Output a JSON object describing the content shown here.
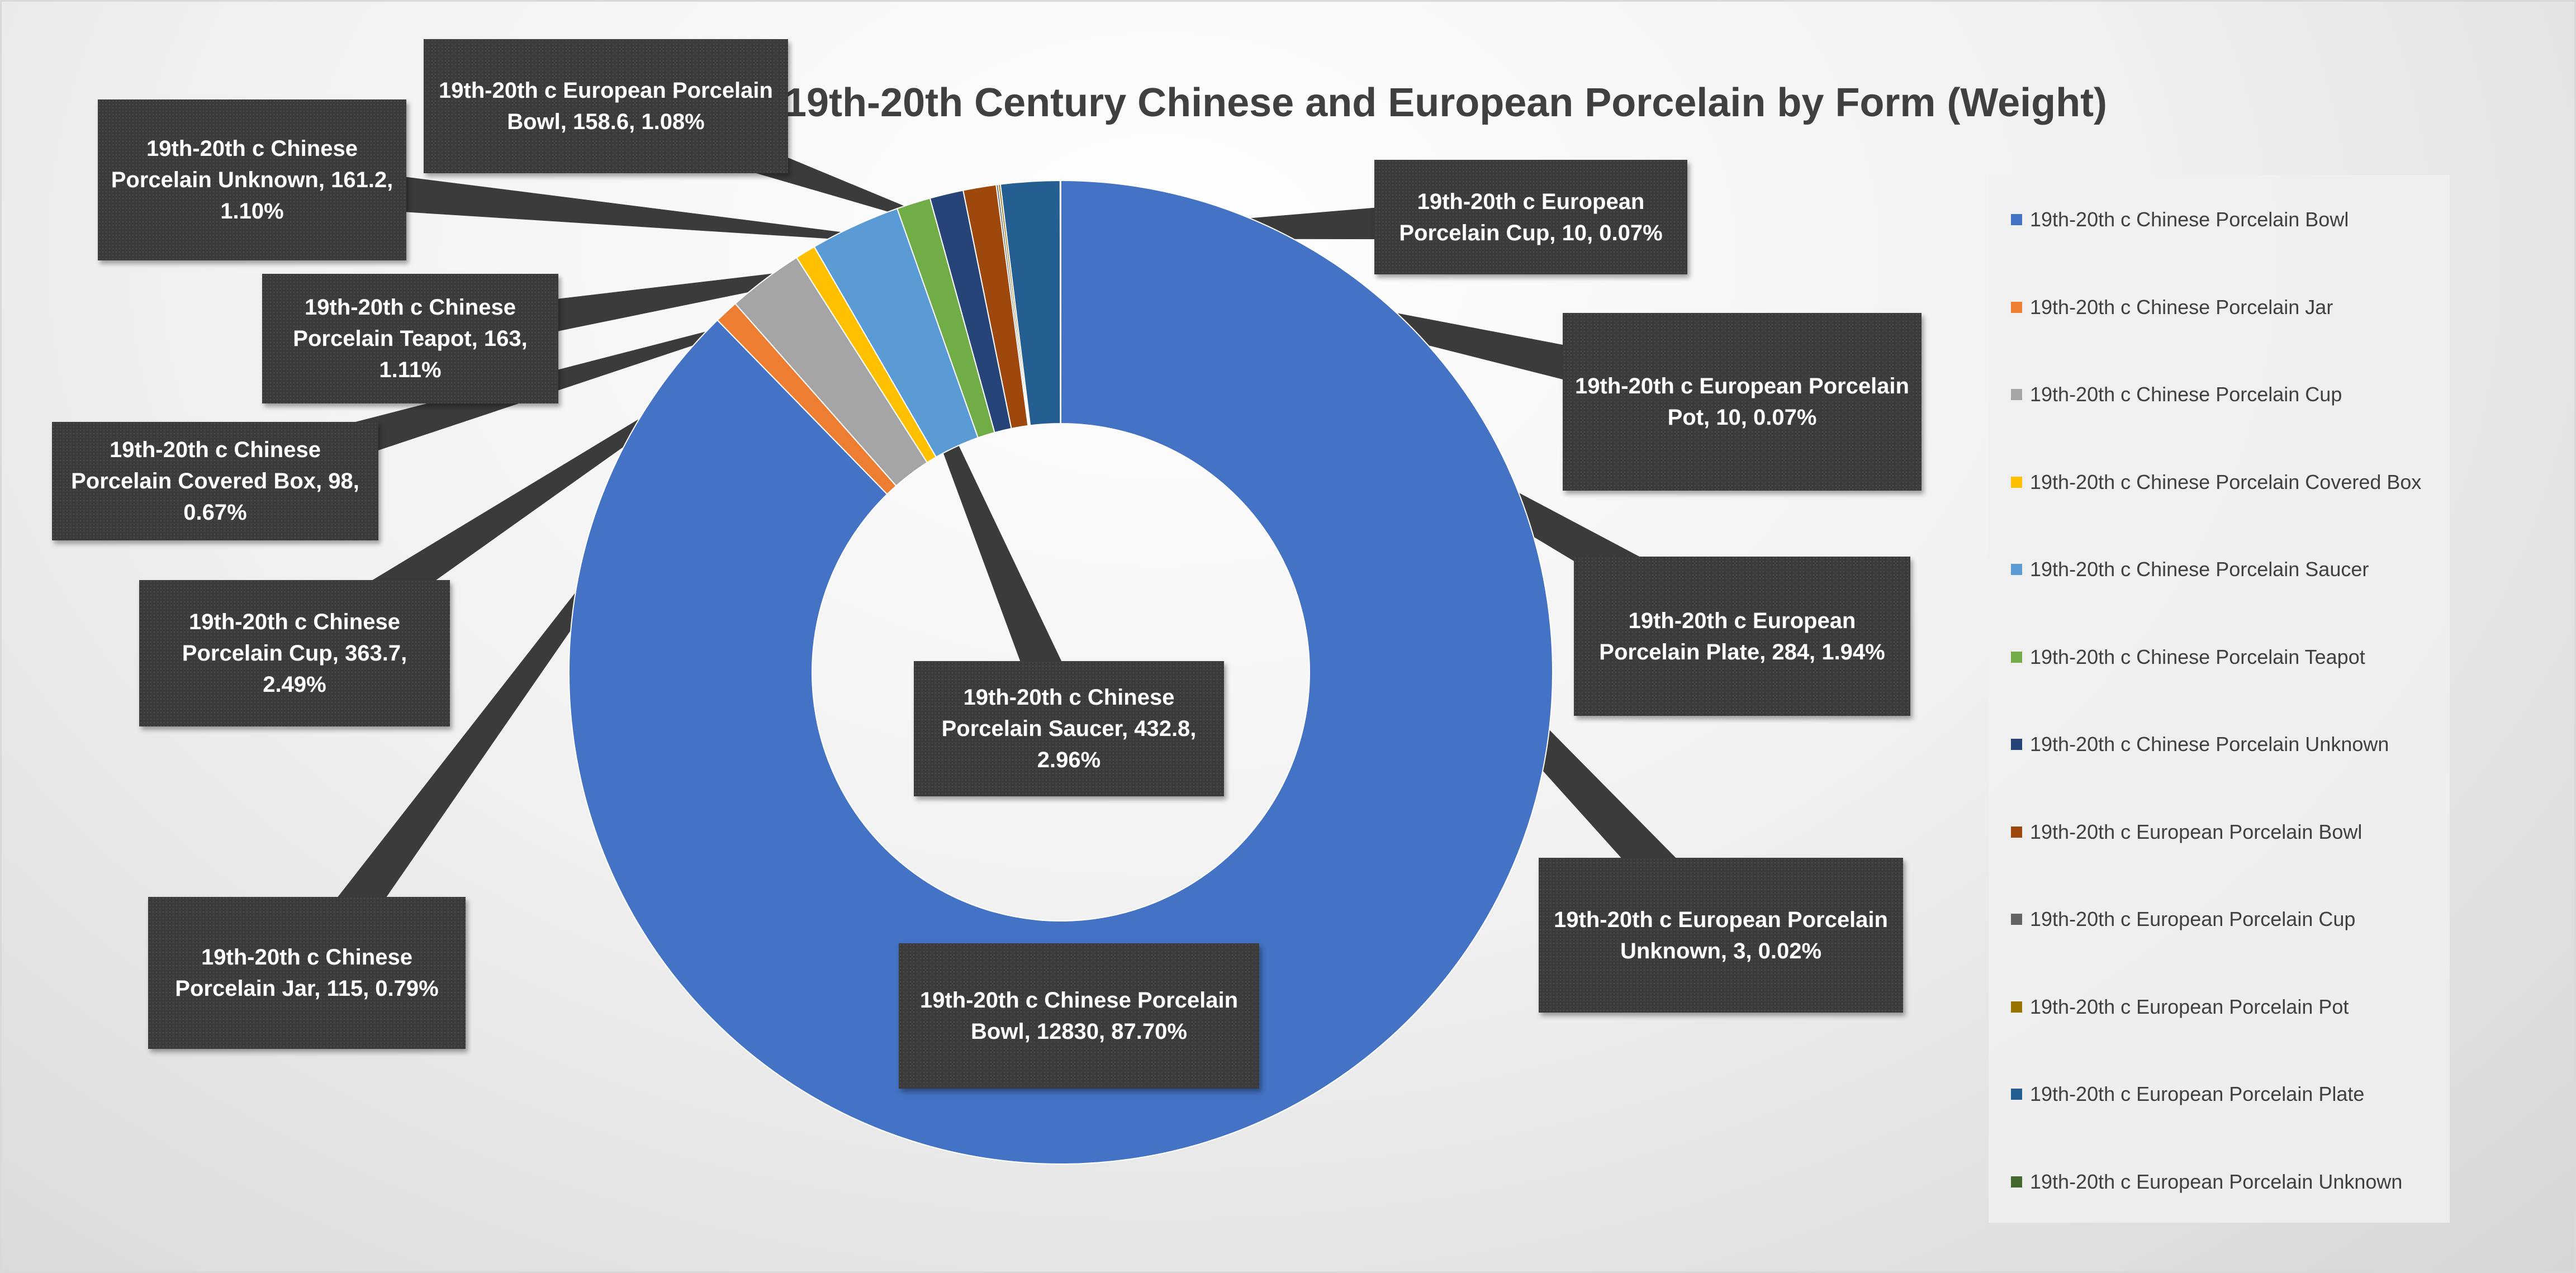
{
  "chart_data": {
    "type": "doughnut",
    "title": "19th-20th Century Chinese and European Porcelain by Form (Weight)",
    "legend_position": "right",
    "series": [
      {
        "slices": [
          {
            "name": "19th-20th c Chinese Porcelain Bowl",
            "value": 12830,
            "percent": "87.70%",
            "color": "#4472C4",
            "label": "19th-20th c Chinese Porcelain Bowl, 12830, 87.70%"
          },
          {
            "name": "19th-20th c Chinese Porcelain Jar",
            "value": 115,
            "percent": "0.79%",
            "color": "#ED7D31",
            "label": "19th-20th c Chinese Porcelain Jar, 115, 0.79%"
          },
          {
            "name": "19th-20th c Chinese Porcelain Cup",
            "value": 363.7,
            "percent": "2.49%",
            "color": "#A5A5A5",
            "label": "19th-20th c Chinese Porcelain Cup, 363.7, 2.49%"
          },
          {
            "name": "19th-20th c Chinese Porcelain Covered Box",
            "value": 98,
            "percent": "0.67%",
            "color": "#FFC000",
            "label": "19th-20th c Chinese Porcelain Covered Box, 98, 0.67%"
          },
          {
            "name": "19th-20th c Chinese Porcelain Saucer",
            "value": 432.8,
            "percent": "2.96%",
            "color": "#5B9BD5",
            "label": "19th-20th c Chinese Porcelain Saucer, 432.8, 2.96%"
          },
          {
            "name": "19th-20th c Chinese Porcelain Teapot",
            "value": 163,
            "percent": "1.11%",
            "color": "#70AD47",
            "label": "19th-20th c Chinese Porcelain Teapot, 163, 1.11%"
          },
          {
            "name": "19th-20th c Chinese Porcelain Unknown",
            "value": 161.2,
            "percent": "1.10%",
            "color": "#264478",
            "label": "19th-20th c Chinese Porcelain Unknown, 161.2, 1.10%"
          },
          {
            "name": "19th-20th c European Porcelain Bowl",
            "value": 158.6,
            "percent": "1.08%",
            "color": "#9E480E",
            "label": "19th-20th c European Porcelain Bowl, 158.6, 1.08%"
          },
          {
            "name": "19th-20th c European Porcelain Cup",
            "value": 10,
            "percent": "0.07%",
            "color": "#636363",
            "label": "19th-20th c European Porcelain Cup, 10, 0.07%"
          },
          {
            "name": "19th-20th c European Porcelain Pot",
            "value": 10,
            "percent": "0.07%",
            "color": "#997300",
            "label": "19th-20th c European Porcelain Pot, 10, 0.07%"
          },
          {
            "name": "19th-20th c European Porcelain Plate",
            "value": 284,
            "percent": "1.94%",
            "color": "#255E91",
            "label": "19th-20th c European Porcelain Plate, 284, 1.94%"
          },
          {
            "name": "19th-20th c European Porcelain Unknown",
            "value": 3,
            "percent": "0.02%",
            "color": "#43682B",
            "label": "19th-20th c European Porcelain Unknown, 3, 0.02%"
          }
        ]
      }
    ]
  }
}
